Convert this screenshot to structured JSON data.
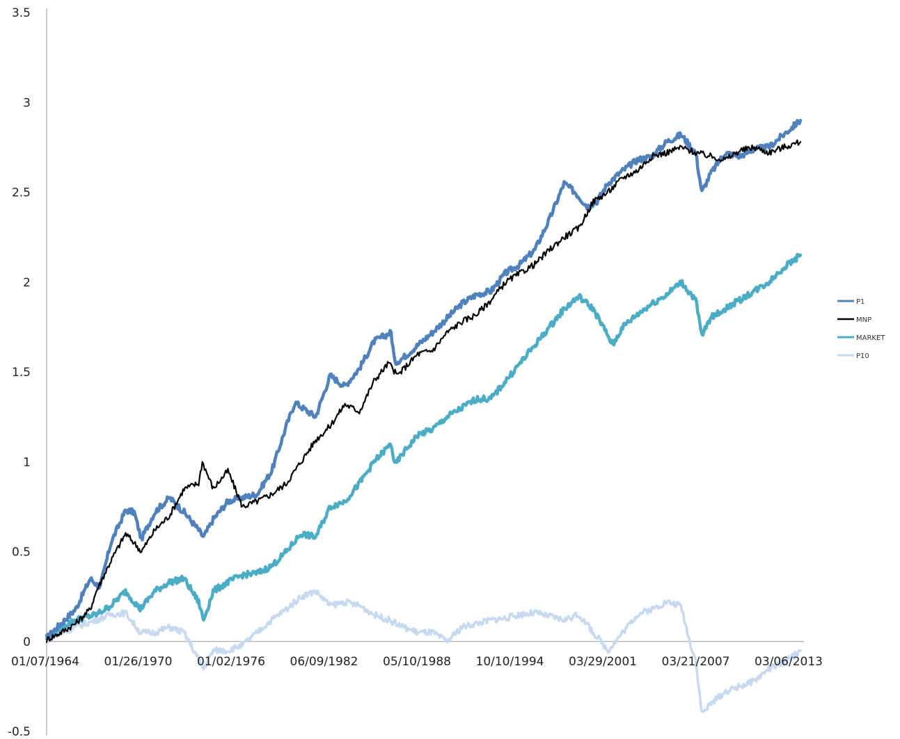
{
  "chart_data": {
    "type": "line",
    "title": "",
    "xlabel": "",
    "ylabel": "",
    "ylim": [
      -0.5,
      3.5
    ],
    "y_ticks": [
      "3.5",
      "3",
      "2.5",
      "2",
      "1.5",
      "1",
      "0.5",
      "0",
      "-0.5"
    ],
    "x_ticks": [
      "01/07/1964",
      "01/26/1970",
      "01/02/1976",
      "06/09/1982",
      "05/10/1988",
      "10/10/1994",
      "03/29/2001",
      "03/21/2007",
      "03/06/2013"
    ],
    "x_range": [
      "1964-01-07",
      "2015-08-01"
    ],
    "grid": false,
    "legend_position": "right",
    "series": [
      {
        "name": "P1",
        "color": "#4f81bd",
        "points": [
          [
            "1964-01-07",
            0.02
          ],
          [
            "1965-01-01",
            0.1
          ],
          [
            "1966-01-01",
            0.18
          ],
          [
            "1967-01-01",
            0.35
          ],
          [
            "1967-09-01",
            0.3
          ],
          [
            "1968-06-01",
            0.55
          ],
          [
            "1969-06-01",
            0.73
          ],
          [
            "1970-01-01",
            0.72
          ],
          [
            "1970-07-01",
            0.57
          ],
          [
            "1971-06-01",
            0.72
          ],
          [
            "1972-06-01",
            0.8
          ],
          [
            "1973-06-01",
            0.72
          ],
          [
            "1974-06-01",
            0.62
          ],
          [
            "1974-10-01",
            0.58
          ],
          [
            "1975-06-01",
            0.68
          ],
          [
            "1976-06-01",
            0.78
          ],
          [
            "1977-06-01",
            0.8
          ],
          [
            "1978-06-01",
            0.82
          ],
          [
            "1979-06-01",
            0.95
          ],
          [
            "1980-06-01",
            1.2
          ],
          [
            "1981-01-01",
            1.33
          ],
          [
            "1982-06-01",
            1.25
          ],
          [
            "1983-06-01",
            1.48
          ],
          [
            "1984-06-01",
            1.42
          ],
          [
            "1985-06-01",
            1.52
          ],
          [
            "1986-06-01",
            1.67
          ],
          [
            "1987-08-01",
            1.72
          ],
          [
            "1987-11-01",
            1.55
          ],
          [
            "1988-06-01",
            1.58
          ],
          [
            "1989-06-01",
            1.65
          ],
          [
            "1990-06-01",
            1.72
          ],
          [
            "1991-06-01",
            1.8
          ],
          [
            "1992-06-01",
            1.88
          ],
          [
            "1993-06-01",
            1.93
          ],
          [
            "1994-06-01",
            1.95
          ],
          [
            "1995-06-01",
            2.05
          ],
          [
            "1996-06-01",
            2.1
          ],
          [
            "1997-06-01",
            2.18
          ],
          [
            "1998-06-01",
            2.35
          ],
          [
            "1999-06-01",
            2.55
          ],
          [
            "2000-03-01",
            2.5
          ],
          [
            "2001-01-01",
            2.42
          ],
          [
            "2001-09-01",
            2.45
          ],
          [
            "2002-06-01",
            2.55
          ],
          [
            "2003-06-01",
            2.62
          ],
          [
            "2004-06-01",
            2.68
          ],
          [
            "2005-06-01",
            2.7
          ],
          [
            "2006-06-01",
            2.78
          ],
          [
            "2007-06-01",
            2.82
          ],
          [
            "2008-06-01",
            2.72
          ],
          [
            "2008-11-01",
            2.5
          ],
          [
            "2009-06-01",
            2.6
          ],
          [
            "2010-06-01",
            2.72
          ],
          [
            "2011-06-01",
            2.7
          ],
          [
            "2012-06-01",
            2.74
          ],
          [
            "2013-06-01",
            2.75
          ],
          [
            "2014-06-01",
            2.82
          ],
          [
            "2015-08-01",
            2.9
          ]
        ]
      },
      {
        "name": "MNP",
        "color": "#000000",
        "points": [
          [
            "1964-01-07",
            0.01
          ],
          [
            "1965-01-01",
            0.05
          ],
          [
            "1966-01-01",
            0.1
          ],
          [
            "1967-01-01",
            0.18
          ],
          [
            "1967-06-01",
            0.28
          ],
          [
            "1968-06-01",
            0.45
          ],
          [
            "1969-06-01",
            0.6
          ],
          [
            "1970-01-01",
            0.55
          ],
          [
            "1970-07-01",
            0.5
          ],
          [
            "1971-06-01",
            0.62
          ],
          [
            "1972-06-01",
            0.7
          ],
          [
            "1973-06-01",
            0.85
          ],
          [
            "1974-06-01",
            0.88
          ],
          [
            "1974-09-01",
            1.0
          ],
          [
            "1975-06-01",
            0.85
          ],
          [
            "1976-06-01",
            0.95
          ],
          [
            "1977-06-01",
            0.75
          ],
          [
            "1978-06-01",
            0.78
          ],
          [
            "1979-06-01",
            0.82
          ],
          [
            "1980-06-01",
            0.88
          ],
          [
            "1981-06-01",
            1.0
          ],
          [
            "1982-06-01",
            1.12
          ],
          [
            "1983-06-01",
            1.2
          ],
          [
            "1984-06-01",
            1.32
          ],
          [
            "1985-06-01",
            1.28
          ],
          [
            "1986-06-01",
            1.45
          ],
          [
            "1987-06-01",
            1.55
          ],
          [
            "1988-01-01",
            1.48
          ],
          [
            "1989-06-01",
            1.6
          ],
          [
            "1990-06-01",
            1.62
          ],
          [
            "1991-06-01",
            1.72
          ],
          [
            "1992-06-01",
            1.78
          ],
          [
            "1993-06-01",
            1.82
          ],
          [
            "1994-06-01",
            1.9
          ],
          [
            "1995-06-01",
            2.0
          ],
          [
            "1996-06-01",
            2.05
          ],
          [
            "1997-06-01",
            2.1
          ],
          [
            "1998-06-01",
            2.18
          ],
          [
            "1999-06-01",
            2.25
          ],
          [
            "2000-06-01",
            2.3
          ],
          [
            "2001-06-01",
            2.45
          ],
          [
            "2002-06-01",
            2.5
          ],
          [
            "2003-06-01",
            2.58
          ],
          [
            "2004-06-01",
            2.62
          ],
          [
            "2005-06-01",
            2.7
          ],
          [
            "2006-06-01",
            2.72
          ],
          [
            "2007-06-01",
            2.75
          ],
          [
            "2008-06-01",
            2.72
          ],
          [
            "2009-06-01",
            2.7
          ],
          [
            "2010-06-01",
            2.68
          ],
          [
            "2011-06-01",
            2.73
          ],
          [
            "2012-06-01",
            2.75
          ],
          [
            "2013-06-01",
            2.72
          ],
          [
            "2014-06-01",
            2.75
          ],
          [
            "2015-08-01",
            2.78
          ]
        ]
      },
      {
        "name": "MARKET",
        "color": "#4bacc6",
        "points": [
          [
            "1964-01-07",
            0.02
          ],
          [
            "1965-01-01",
            0.08
          ],
          [
            "1966-01-01",
            0.12
          ],
          [
            "1967-06-01",
            0.15
          ],
          [
            "1968-06-01",
            0.2
          ],
          [
            "1969-06-01",
            0.28
          ],
          [
            "1970-06-01",
            0.18
          ],
          [
            "1971-06-01",
            0.28
          ],
          [
            "1972-06-01",
            0.33
          ],
          [
            "1973-06-01",
            0.35
          ],
          [
            "1974-06-01",
            0.22
          ],
          [
            "1974-10-01",
            0.12
          ],
          [
            "1975-06-01",
            0.28
          ],
          [
            "1976-06-01",
            0.33
          ],
          [
            "1977-06-01",
            0.37
          ],
          [
            "1978-06-01",
            0.38
          ],
          [
            "1979-06-01",
            0.42
          ],
          [
            "1980-06-01",
            0.5
          ],
          [
            "1981-06-01",
            0.6
          ],
          [
            "1982-06-01",
            0.58
          ],
          [
            "1983-06-01",
            0.75
          ],
          [
            "1984-06-01",
            0.78
          ],
          [
            "1985-06-01",
            0.88
          ],
          [
            "1986-06-01",
            1.0
          ],
          [
            "1987-08-01",
            1.1
          ],
          [
            "1987-11-01",
            0.98
          ],
          [
            "1988-06-01",
            1.05
          ],
          [
            "1989-06-01",
            1.15
          ],
          [
            "1990-06-01",
            1.18
          ],
          [
            "1991-06-01",
            1.25
          ],
          [
            "1992-06-01",
            1.3
          ],
          [
            "1993-06-01",
            1.35
          ],
          [
            "1994-06-01",
            1.35
          ],
          [
            "1995-06-01",
            1.45
          ],
          [
            "1996-06-01",
            1.55
          ],
          [
            "1997-06-01",
            1.65
          ],
          [
            "1998-06-01",
            1.75
          ],
          [
            "1999-06-01",
            1.85
          ],
          [
            "2000-06-01",
            1.92
          ],
          [
            "2001-06-01",
            1.85
          ],
          [
            "2002-06-01",
            1.7
          ],
          [
            "2002-10-01",
            1.65
          ],
          [
            "2003-06-01",
            1.75
          ],
          [
            "2004-06-01",
            1.82
          ],
          [
            "2005-06-01",
            1.88
          ],
          [
            "2006-06-01",
            1.93
          ],
          [
            "2007-06-01",
            2.0
          ],
          [
            "2008-06-01",
            1.9
          ],
          [
            "2008-11-01",
            1.7
          ],
          [
            "2009-06-01",
            1.8
          ],
          [
            "2010-06-01",
            1.85
          ],
          [
            "2011-06-01",
            1.9
          ],
          [
            "2012-06-01",
            1.95
          ],
          [
            "2013-06-01",
            2.0
          ],
          [
            "2014-06-01",
            2.08
          ],
          [
            "2015-08-01",
            2.15
          ]
        ]
      },
      {
        "name": "P10",
        "color": "#c6d9f1",
        "points": [
          [
            "1964-01-07",
            0.01
          ],
          [
            "1965-01-01",
            0.05
          ],
          [
            "1966-01-01",
            0.08
          ],
          [
            "1967-06-01",
            0.12
          ],
          [
            "1968-06-01",
            0.15
          ],
          [
            "1969-06-01",
            0.16
          ],
          [
            "1970-06-01",
            0.05
          ],
          [
            "1971-06-01",
            0.05
          ],
          [
            "1972-06-01",
            0.08
          ],
          [
            "1973-06-01",
            0.05
          ],
          [
            "1974-06-01",
            -0.1
          ],
          [
            "1974-10-01",
            -0.15
          ],
          [
            "1975-06-01",
            -0.05
          ],
          [
            "1976-06-01",
            -0.05
          ],
          [
            "1977-06-01",
            -0.02
          ],
          [
            "1978-06-01",
            0.05
          ],
          [
            "1979-06-01",
            0.12
          ],
          [
            "1980-06-01",
            0.18
          ],
          [
            "1981-06-01",
            0.25
          ],
          [
            "1982-06-01",
            0.28
          ],
          [
            "1983-06-01",
            0.2
          ],
          [
            "1984-06-01",
            0.22
          ],
          [
            "1985-06-01",
            0.2
          ],
          [
            "1986-06-01",
            0.15
          ],
          [
            "1987-06-01",
            0.12
          ],
          [
            "1988-06-01",
            0.08
          ],
          [
            "1989-06-01",
            0.05
          ],
          [
            "1990-06-01",
            0.05
          ],
          [
            "1991-06-01",
            0.0
          ],
          [
            "1992-06-01",
            0.08
          ],
          [
            "1993-06-01",
            0.1
          ],
          [
            "1994-06-01",
            0.12
          ],
          [
            "1995-06-01",
            0.13
          ],
          [
            "1996-06-01",
            0.15
          ],
          [
            "1997-06-01",
            0.16
          ],
          [
            "1998-06-01",
            0.14
          ],
          [
            "1999-06-01",
            0.12
          ],
          [
            "2000-06-01",
            0.15
          ],
          [
            "2001-06-01",
            0.05
          ],
          [
            "2002-06-01",
            -0.05
          ],
          [
            "2003-06-01",
            0.05
          ],
          [
            "2004-06-01",
            0.15
          ],
          [
            "2005-06-01",
            0.18
          ],
          [
            "2006-06-01",
            0.22
          ],
          [
            "2007-06-01",
            0.2
          ],
          [
            "2008-01-01",
            0.0
          ],
          [
            "2008-06-01",
            -0.1
          ],
          [
            "2008-11-01",
            -0.4
          ],
          [
            "2009-06-01",
            -0.35
          ],
          [
            "2010-06-01",
            -0.28
          ],
          [
            "2011-06-01",
            -0.25
          ],
          [
            "2012-06-01",
            -0.22
          ],
          [
            "2013-06-01",
            -0.15
          ],
          [
            "2014-06-01",
            -0.12
          ],
          [
            "2015-08-01",
            -0.05
          ]
        ]
      }
    ]
  }
}
